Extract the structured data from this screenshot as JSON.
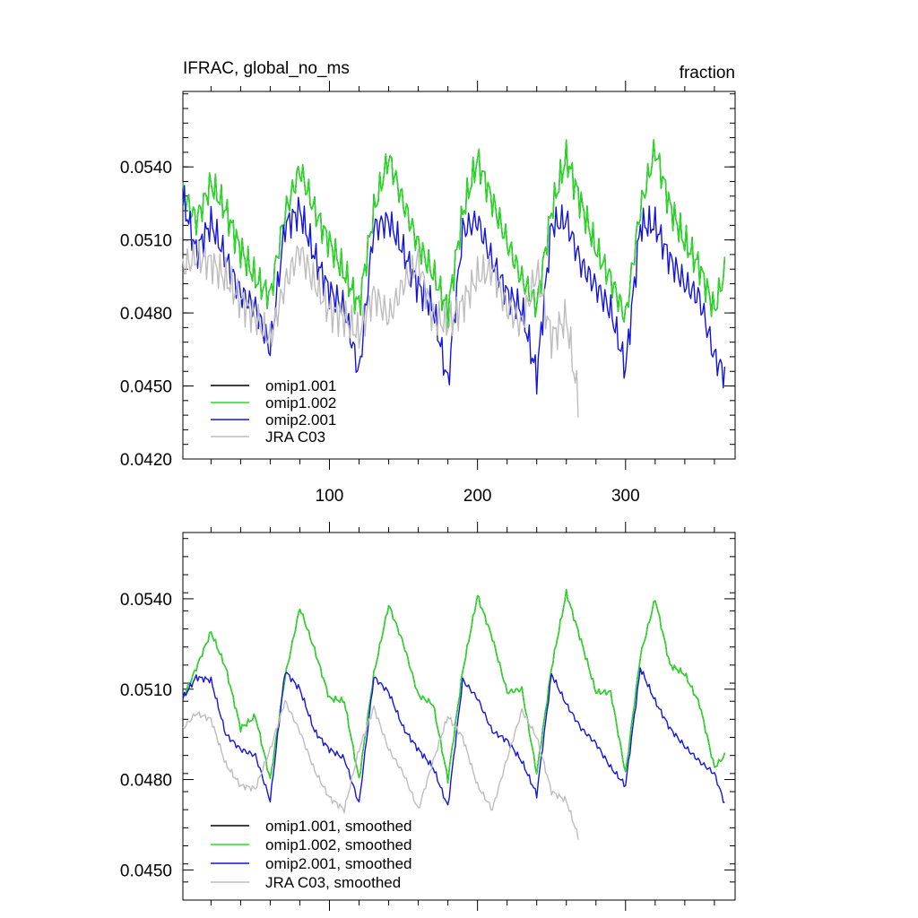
{
  "chart_data": [
    {
      "type": "line",
      "id": "top",
      "title": "IFRAC, global_no_ms",
      "units": "fraction",
      "xlabel": "",
      "ylabel": "",
      "xlim": [
        1,
        374
      ],
      "ylim": [
        0.042,
        0.0571
      ],
      "xticks": [
        100,
        200,
        300
      ],
      "xtick_labels": [
        "100",
        "200",
        "300"
      ],
      "yticks": [
        0.042,
        0.045,
        0.048,
        0.051,
        0.054
      ],
      "ytick_labels": [
        "0.0420",
        "0.0450",
        "0.0480",
        "0.0510",
        "0.0540"
      ],
      "legend_position": "bottom-left",
      "series": [
        {
          "name": "omip1.001",
          "color": "#000000",
          "x": [
            1,
            10,
            20,
            30,
            40,
            50,
            60,
            70,
            80,
            90,
            100,
            110,
            120,
            130,
            140,
            150,
            160,
            170,
            180,
            190,
            200,
            210,
            220,
            230,
            240,
            250,
            260,
            270,
            280,
            290,
            300,
            310,
            320,
            330,
            340,
            350,
            360,
            367
          ],
          "y": [
            0.0529,
            0.0518,
            0.0533,
            0.0522,
            0.0506,
            0.0494,
            0.0487,
            0.0521,
            0.0539,
            0.0522,
            0.0509,
            0.0496,
            0.0483,
            0.0522,
            0.0544,
            0.0525,
            0.0508,
            0.0496,
            0.0481,
            0.0521,
            0.0543,
            0.0526,
            0.0509,
            0.0494,
            0.0483,
            0.0522,
            0.0544,
            0.0525,
            0.0506,
            0.0494,
            0.0478,
            0.0523,
            0.0547,
            0.0524,
            0.0509,
            0.0499,
            0.0481,
            0.0497
          ]
        },
        {
          "name": "omip1.002",
          "color": "#22e11f",
          "x": [
            1,
            10,
            20,
            30,
            40,
            50,
            60,
            70,
            80,
            90,
            100,
            110,
            120,
            130,
            140,
            150,
            160,
            170,
            180,
            190,
            200,
            210,
            220,
            230,
            240,
            250,
            260,
            270,
            280,
            290,
            300,
            310,
            320,
            330,
            340,
            350,
            360,
            367
          ],
          "y": [
            0.0529,
            0.0518,
            0.0533,
            0.0522,
            0.0506,
            0.0494,
            0.0487,
            0.0521,
            0.0539,
            0.0522,
            0.0509,
            0.0496,
            0.0483,
            0.0522,
            0.0544,
            0.0525,
            0.0508,
            0.0496,
            0.0481,
            0.0521,
            0.0543,
            0.0526,
            0.0509,
            0.0494,
            0.0483,
            0.0522,
            0.0544,
            0.0525,
            0.0506,
            0.0494,
            0.0478,
            0.0523,
            0.0547,
            0.0524,
            0.0509,
            0.0499,
            0.0481,
            0.0497
          ]
        },
        {
          "name": "omip2.001",
          "color": "#1414e0",
          "x": [
            1,
            10,
            20,
            30,
            40,
            50,
            60,
            70,
            80,
            90,
            100,
            110,
            120,
            130,
            140,
            150,
            160,
            170,
            180,
            190,
            200,
            210,
            220,
            230,
            240,
            250,
            260,
            270,
            280,
            290,
            300,
            310,
            320,
            330,
            340,
            350,
            360,
            367
          ],
          "y": [
            0.0527,
            0.0505,
            0.0517,
            0.0502,
            0.0488,
            0.0482,
            0.0465,
            0.0516,
            0.0522,
            0.0503,
            0.0489,
            0.0482,
            0.0455,
            0.0515,
            0.0518,
            0.0505,
            0.0491,
            0.0482,
            0.0451,
            0.0514,
            0.0518,
            0.0501,
            0.0488,
            0.0481,
            0.0454,
            0.0516,
            0.0518,
            0.05,
            0.0491,
            0.0481,
            0.0457,
            0.0516,
            0.0516,
            0.0502,
            0.0492,
            0.0486,
            0.0462,
            0.0455
          ]
        },
        {
          "name": "JRA C03",
          "color": "#bdbdbd",
          "x": [
            1,
            10,
            20,
            30,
            40,
            50,
            60,
            70,
            80,
            90,
            100,
            110,
            120,
            130,
            140,
            150,
            160,
            170,
            180,
            190,
            200,
            210,
            220,
            230,
            240,
            250,
            260,
            268
          ],
          "y": [
            0.0499,
            0.0503,
            0.0501,
            0.0494,
            0.0485,
            0.0478,
            0.0469,
            0.0492,
            0.0506,
            0.0492,
            0.0481,
            0.0478,
            0.0471,
            0.0488,
            0.0478,
            0.0492,
            0.0501,
            0.0478,
            0.0475,
            0.0484,
            0.0495,
            0.0498,
            0.0482,
            0.0475,
            0.0497,
            0.047,
            0.0478,
            0.0444
          ]
        }
      ]
    },
    {
      "type": "line",
      "id": "bottom",
      "title": "",
      "xlabel": "",
      "ylabel": "",
      "xlim": [
        1,
        374
      ],
      "ylim": [
        0.044,
        0.0562
      ],
      "xticks": [
        100,
        200,
        300
      ],
      "yticks": [
        0.045,
        0.048,
        0.051,
        0.054
      ],
      "ytick_labels": [
        "0.0450",
        "0.0480",
        "0.0510",
        "0.0540"
      ],
      "legend_position": "bottom-left",
      "series": [
        {
          "name": "omip1.001, smoothed",
          "color": "#000000",
          "x": [
            1,
            10,
            20,
            30,
            40,
            50,
            60,
            70,
            80,
            90,
            100,
            110,
            120,
            130,
            140,
            150,
            160,
            170,
            180,
            190,
            200,
            210,
            220,
            230,
            240,
            250,
            260,
            270,
            280,
            290,
            300,
            310,
            320,
            330,
            340,
            350,
            360,
            367
          ],
          "y": [
            0.0507,
            0.0517,
            0.0529,
            0.0517,
            0.0497,
            0.0501,
            0.048,
            0.0514,
            0.0537,
            0.0523,
            0.0507,
            0.0506,
            0.048,
            0.0515,
            0.0538,
            0.0525,
            0.0508,
            0.0505,
            0.048,
            0.0516,
            0.0541,
            0.0527,
            0.0509,
            0.051,
            0.0482,
            0.0517,
            0.0542,
            0.0526,
            0.0509,
            0.0509,
            0.0482,
            0.0521,
            0.054,
            0.0518,
            0.0515,
            0.0505,
            0.0484,
            0.0488
          ]
        },
        {
          "name": "omip1.002, smoothed",
          "color": "#22e11f",
          "x": [
            1,
            10,
            20,
            30,
            40,
            50,
            60,
            70,
            80,
            90,
            100,
            110,
            120,
            130,
            140,
            150,
            160,
            170,
            180,
            190,
            200,
            210,
            220,
            230,
            240,
            250,
            260,
            270,
            280,
            290,
            300,
            310,
            320,
            330,
            340,
            350,
            360,
            367
          ],
          "y": [
            0.0507,
            0.0517,
            0.0529,
            0.0517,
            0.0497,
            0.0501,
            0.048,
            0.0514,
            0.0537,
            0.0523,
            0.0507,
            0.0506,
            0.048,
            0.0515,
            0.0538,
            0.0525,
            0.0508,
            0.0505,
            0.048,
            0.0516,
            0.0541,
            0.0527,
            0.0509,
            0.051,
            0.0482,
            0.0517,
            0.0542,
            0.0526,
            0.0509,
            0.0509,
            0.0482,
            0.0521,
            0.054,
            0.0518,
            0.0515,
            0.0505,
            0.0484,
            0.0488
          ]
        },
        {
          "name": "omip2.001, smoothed",
          "color": "#1414e0",
          "x": [
            1,
            10,
            20,
            30,
            40,
            50,
            60,
            70,
            80,
            90,
            100,
            110,
            120,
            130,
            140,
            150,
            160,
            170,
            180,
            190,
            200,
            210,
            220,
            230,
            240,
            250,
            260,
            270,
            280,
            290,
            300,
            310,
            320,
            330,
            340,
            350,
            360,
            367
          ],
          "y": [
            0.0507,
            0.0514,
            0.0513,
            0.0495,
            0.049,
            0.0488,
            0.0473,
            0.0516,
            0.051,
            0.0496,
            0.049,
            0.0487,
            0.0472,
            0.0514,
            0.0509,
            0.0497,
            0.049,
            0.0484,
            0.0471,
            0.0513,
            0.0507,
            0.0496,
            0.0493,
            0.0486,
            0.0475,
            0.0515,
            0.0505,
            0.0497,
            0.0492,
            0.0484,
            0.0478,
            0.0517,
            0.0506,
            0.0497,
            0.0491,
            0.0486,
            0.0482,
            0.0472
          ]
        },
        {
          "name": "JRA C03, smoothed",
          "color": "#bdbdbd",
          "x": [
            1,
            10,
            20,
            30,
            40,
            50,
            60,
            70,
            80,
            90,
            100,
            110,
            120,
            130,
            140,
            150,
            160,
            170,
            180,
            190,
            200,
            210,
            220,
            230,
            240,
            250,
            260,
            268
          ],
          "y": [
            0.0497,
            0.0502,
            0.05,
            0.0485,
            0.0478,
            0.0477,
            0.049,
            0.0506,
            0.0496,
            0.0483,
            0.0474,
            0.047,
            0.049,
            0.0504,
            0.049,
            0.0482,
            0.047,
            0.0486,
            0.0501,
            0.0494,
            0.0478,
            0.047,
            0.0487,
            0.0503,
            0.0494,
            0.0476,
            0.0473,
            0.0461
          ]
        }
      ]
    }
  ]
}
